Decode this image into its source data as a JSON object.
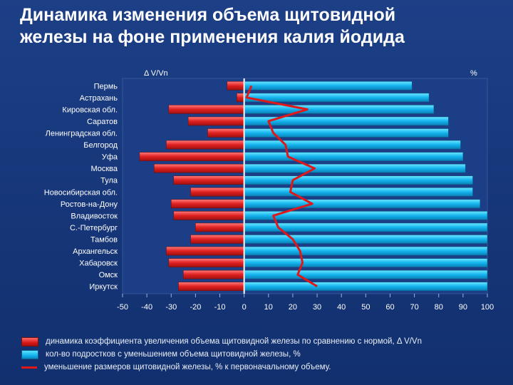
{
  "title_line1": "Динамика изменения  объема  щитовидной",
  "title_line2": "железы на фоне применения калия йодида",
  "chart_data": {
    "type": "bar",
    "orientation": "horizontal",
    "top_left_label": "Δ V/Vn",
    "top_right_label": "%",
    "categories": [
      "Пермь",
      "Астрахань",
      "Кировская обл.",
      "Саратов",
      "Ленинградская обл.",
      "Белгород",
      "Уфа",
      "Москва",
      "Тула",
      "Новосибирская обл.",
      "Ростов-на-Дону",
      "Владивосток",
      "С.-Петербург",
      "Тамбов",
      "Архангельск",
      "Хабаровск",
      "Омск",
      "Иркутск"
    ],
    "xlim": [
      -50,
      100
    ],
    "xticks": [
      "-50",
      "-40",
      "-30",
      "-20",
      "-10",
      "0",
      "10",
      "20",
      "30",
      "40",
      "50",
      "60",
      "70",
      "80",
      "90",
      "100"
    ],
    "series": [
      {
        "name": "динамика коэффициента увеличения объема щитовидной железы по сравнению с нормой, Δ V/Vn",
        "type": "bar",
        "color": "#e02020",
        "values": [
          -7,
          -3,
          -31,
          -23,
          -15,
          -32,
          -43,
          -37,
          -29,
          -22,
          -30,
          -29,
          -20,
          -22,
          -32,
          -31,
          -25,
          -27
        ]
      },
      {
        "name": "кол-во подростков с уменьшением объема щитовидной железы, %",
        "type": "bar",
        "color": "#14b4ee",
        "values": [
          69,
          76,
          78,
          84,
          84,
          89,
          90,
          91,
          94,
          94,
          97,
          100,
          100,
          100,
          100,
          100,
          100,
          100
        ]
      },
      {
        "name": "уменьшение размеров щитовидной железы, % к первоначальному объему.",
        "type": "line",
        "color": "#e01818",
        "values": [
          3,
          1,
          26,
          10,
          12,
          17,
          18,
          29,
          20,
          19,
          28,
          12,
          14,
          20,
          23,
          24,
          22,
          30
        ]
      }
    ],
    "grid": false
  }
}
